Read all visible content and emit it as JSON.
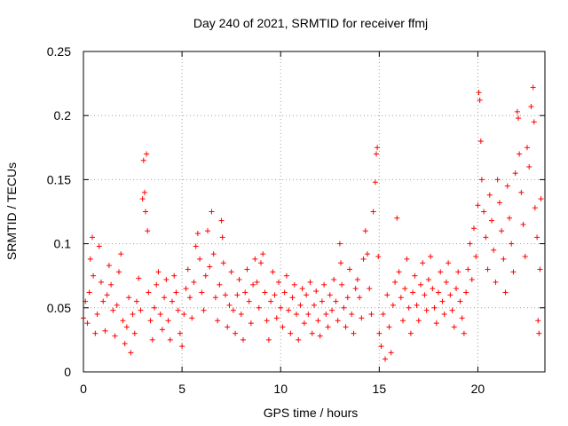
{
  "chart_data": {
    "type": "scatter",
    "title": "Day 240 of 2021, SRMTID for receiver ffmj",
    "xlabel": "GPS time / hours",
    "ylabel": "SRMTID / TECUs",
    "xlim": [
      0,
      23.4
    ],
    "ylim": [
      0,
      0.25
    ],
    "x_ticks": [
      0,
      5,
      10,
      15,
      20
    ],
    "y_ticks": [
      0,
      0.05,
      0.1,
      0.15,
      0.2,
      0.25
    ],
    "x_tick_labels": [
      "0",
      "5",
      "10",
      "15",
      "20"
    ],
    "y_tick_labels": [
      "0",
      "0.05",
      "0.1",
      "0.15",
      "0.2",
      "0.25"
    ],
    "grid": true,
    "marker": "+",
    "color": "#ff0000",
    "series": [
      {
        "name": "SRMTID",
        "points": [
          [
            0.0,
            0.042
          ],
          [
            0.1,
            0.055
          ],
          [
            0.2,
            0.038
          ],
          [
            0.3,
            0.062
          ],
          [
            0.35,
            0.088
          ],
          [
            0.45,
            0.105
          ],
          [
            0.5,
            0.075
          ],
          [
            0.6,
            0.03
          ],
          [
            0.7,
            0.045
          ],
          [
            0.8,
            0.098
          ],
          [
            0.9,
            0.07
          ],
          [
            1.0,
            0.055
          ],
          [
            1.1,
            0.032
          ],
          [
            1.2,
            0.06
          ],
          [
            1.3,
            0.083
          ],
          [
            1.4,
            0.068
          ],
          [
            1.5,
            0.048
          ],
          [
            1.6,
            0.028
          ],
          [
            1.7,
            0.052
          ],
          [
            1.8,
            0.078
          ],
          [
            1.9,
            0.092
          ],
          [
            2.0,
            0.04
          ],
          [
            2.1,
            0.022
          ],
          [
            2.2,
            0.035
          ],
          [
            2.3,
            0.058
          ],
          [
            2.4,
            0.015
          ],
          [
            2.5,
            0.045
          ],
          [
            2.6,
            0.03
          ],
          [
            2.7,
            0.055
          ],
          [
            2.8,
            0.073
          ],
          [
            2.9,
            0.048
          ],
          [
            3.0,
            0.135
          ],
          [
            3.05,
            0.165
          ],
          [
            3.1,
            0.14
          ],
          [
            3.15,
            0.125
          ],
          [
            3.2,
            0.17
          ],
          [
            3.25,
            0.11
          ],
          [
            3.3,
            0.062
          ],
          [
            3.4,
            0.04
          ],
          [
            3.5,
            0.025
          ],
          [
            3.6,
            0.05
          ],
          [
            3.7,
            0.068
          ],
          [
            3.8,
            0.078
          ],
          [
            3.9,
            0.045
          ],
          [
            4.0,
            0.033
          ],
          [
            4.1,
            0.058
          ],
          [
            4.2,
            0.072
          ],
          [
            4.3,
            0.04
          ],
          [
            4.4,
            0.025
          ],
          [
            4.5,
            0.055
          ],
          [
            4.6,
            0.075
          ],
          [
            4.7,
            0.062
          ],
          [
            4.8,
            0.048
          ],
          [
            4.9,
            0.03
          ],
          [
            5.0,
            0.02
          ],
          [
            5.1,
            0.045
          ],
          [
            5.2,
            0.065
          ],
          [
            5.3,
            0.08
          ],
          [
            5.4,
            0.058
          ],
          [
            5.5,
            0.042
          ],
          [
            5.6,
            0.07
          ],
          [
            5.7,
            0.098
          ],
          [
            5.8,
            0.108
          ],
          [
            5.9,
            0.088
          ],
          [
            6.0,
            0.062
          ],
          [
            6.1,
            0.048
          ],
          [
            6.2,
            0.075
          ],
          [
            6.3,
            0.11
          ],
          [
            6.4,
            0.082
          ],
          [
            6.5,
            0.125
          ],
          [
            6.6,
            0.092
          ],
          [
            6.7,
            0.058
          ],
          [
            6.8,
            0.04
          ],
          [
            6.9,
            0.068
          ],
          [
            7.0,
            0.118
          ],
          [
            7.05,
            0.105
          ],
          [
            7.1,
            0.085
          ],
          [
            7.2,
            0.06
          ],
          [
            7.3,
            0.035
          ],
          [
            7.4,
            0.052
          ],
          [
            7.5,
            0.078
          ],
          [
            7.6,
            0.048
          ],
          [
            7.7,
            0.03
          ],
          [
            7.8,
            0.06
          ],
          [
            7.9,
            0.072
          ],
          [
            8.0,
            0.045
          ],
          [
            8.1,
            0.025
          ],
          [
            8.2,
            0.062
          ],
          [
            8.3,
            0.08
          ],
          [
            8.4,
            0.055
          ],
          [
            8.5,
            0.038
          ],
          [
            8.6,
            0.068
          ],
          [
            8.7,
            0.088
          ],
          [
            8.8,
            0.07
          ],
          [
            8.9,
            0.05
          ],
          [
            9.0,
            0.085
          ],
          [
            9.1,
            0.092
          ],
          [
            9.2,
            0.062
          ],
          [
            9.3,
            0.04
          ],
          [
            9.4,
            0.025
          ],
          [
            9.5,
            0.055
          ],
          [
            9.6,
            0.078
          ],
          [
            9.7,
            0.06
          ],
          [
            9.8,
            0.042
          ],
          [
            9.9,
            0.07
          ],
          [
            10.0,
            0.05
          ],
          [
            10.1,
            0.035
          ],
          [
            10.2,
            0.062
          ],
          [
            10.3,
            0.075
          ],
          [
            10.4,
            0.048
          ],
          [
            10.5,
            0.03
          ],
          [
            10.6,
            0.058
          ],
          [
            10.7,
            0.068
          ],
          [
            10.8,
            0.045
          ],
          [
            10.9,
            0.025
          ],
          [
            11.0,
            0.052
          ],
          [
            11.1,
            0.065
          ],
          [
            11.2,
            0.038
          ],
          [
            11.3,
            0.06
          ],
          [
            11.4,
            0.045
          ],
          [
            11.5,
            0.07
          ],
          [
            11.6,
            0.03
          ],
          [
            11.7,
            0.052
          ],
          [
            11.8,
            0.063
          ],
          [
            11.9,
            0.04
          ],
          [
            12.0,
            0.028
          ],
          [
            12.1,
            0.055
          ],
          [
            12.2,
            0.068
          ],
          [
            12.3,
            0.045
          ],
          [
            12.4,
            0.035
          ],
          [
            12.5,
            0.06
          ],
          [
            12.6,
            0.048
          ],
          [
            12.7,
            0.072
          ],
          [
            12.8,
            0.055
          ],
          [
            12.9,
            0.04
          ],
          [
            13.0,
            0.1
          ],
          [
            13.05,
            0.085
          ],
          [
            13.1,
            0.068
          ],
          [
            13.2,
            0.05
          ],
          [
            13.3,
            0.035
          ],
          [
            13.4,
            0.058
          ],
          [
            13.5,
            0.08
          ],
          [
            13.6,
            0.045
          ],
          [
            13.7,
            0.03
          ],
          [
            13.8,
            0.065
          ],
          [
            13.9,
            0.072
          ],
          [
            14.0,
            0.058
          ],
          [
            14.1,
            0.042
          ],
          [
            14.2,
            0.088
          ],
          [
            14.3,
            0.11
          ],
          [
            14.4,
            0.092
          ],
          [
            14.5,
            0.065
          ],
          [
            14.6,
            0.045
          ],
          [
            14.7,
            0.125
          ],
          [
            14.8,
            0.148
          ],
          [
            14.85,
            0.17
          ],
          [
            14.9,
            0.175
          ],
          [
            14.95,
            0.09
          ],
          [
            15.0,
            0.03
          ],
          [
            15.1,
            0.02
          ],
          [
            15.2,
            0.045
          ],
          [
            15.3,
            0.01
          ],
          [
            15.4,
            0.06
          ],
          [
            15.5,
            0.035
          ],
          [
            15.6,
            0.015
          ],
          [
            15.7,
            0.052
          ],
          [
            15.8,
            0.07
          ],
          [
            15.9,
            0.12
          ],
          [
            16.0,
            0.078
          ],
          [
            16.1,
            0.058
          ],
          [
            16.2,
            0.04
          ],
          [
            16.3,
            0.065
          ],
          [
            16.4,
            0.088
          ],
          [
            16.5,
            0.05
          ],
          [
            16.6,
            0.03
          ],
          [
            16.7,
            0.062
          ],
          [
            16.8,
            0.075
          ],
          [
            16.9,
            0.052
          ],
          [
            17.0,
            0.04
          ],
          [
            17.1,
            0.068
          ],
          [
            17.2,
            0.085
          ],
          [
            17.3,
            0.06
          ],
          [
            17.4,
            0.048
          ],
          [
            17.5,
            0.072
          ],
          [
            17.6,
            0.09
          ],
          [
            17.7,
            0.065
          ],
          [
            17.8,
            0.05
          ],
          [
            17.9,
            0.038
          ],
          [
            18.0,
            0.062
          ],
          [
            18.1,
            0.078
          ],
          [
            18.2,
            0.055
          ],
          [
            18.3,
            0.045
          ],
          [
            18.4,
            0.07
          ],
          [
            18.5,
            0.085
          ],
          [
            18.6,
            0.06
          ],
          [
            18.7,
            0.048
          ],
          [
            18.8,
            0.035
          ],
          [
            18.9,
            0.065
          ],
          [
            19.0,
            0.078
          ],
          [
            19.1,
            0.055
          ],
          [
            19.2,
            0.042
          ],
          [
            19.3,
            0.03
          ],
          [
            19.4,
            0.062
          ],
          [
            19.5,
            0.08
          ],
          [
            19.6,
            0.1
          ],
          [
            19.7,
            0.072
          ],
          [
            19.8,
            0.112
          ],
          [
            19.9,
            0.09
          ],
          [
            20.0,
            0.13
          ],
          [
            20.05,
            0.218
          ],
          [
            20.1,
            0.212
          ],
          [
            20.15,
            0.18
          ],
          [
            20.2,
            0.15
          ],
          [
            20.3,
            0.125
          ],
          [
            20.4,
            0.105
          ],
          [
            20.5,
            0.08
          ],
          [
            20.6,
            0.138
          ],
          [
            20.7,
            0.118
          ],
          [
            20.8,
            0.095
          ],
          [
            20.9,
            0.07
          ],
          [
            21.0,
            0.15
          ],
          [
            21.1,
            0.132
          ],
          [
            21.2,
            0.11
          ],
          [
            21.3,
            0.088
          ],
          [
            21.4,
            0.062
          ],
          [
            21.5,
            0.145
          ],
          [
            21.6,
            0.12
          ],
          [
            21.7,
            0.1
          ],
          [
            21.8,
            0.078
          ],
          [
            21.9,
            0.155
          ],
          [
            22.0,
            0.203
          ],
          [
            22.05,
            0.198
          ],
          [
            22.1,
            0.17
          ],
          [
            22.2,
            0.14
          ],
          [
            22.3,
            0.115
          ],
          [
            22.4,
            0.09
          ],
          [
            22.5,
            0.175
          ],
          [
            22.6,
            0.16
          ],
          [
            22.7,
            0.207
          ],
          [
            22.8,
            0.222
          ],
          [
            22.85,
            0.195
          ],
          [
            22.9,
            0.128
          ],
          [
            23.0,
            0.105
          ],
          [
            23.05,
            0.04
          ],
          [
            23.1,
            0.03
          ],
          [
            23.15,
            0.08
          ],
          [
            23.2,
            0.135
          ]
        ]
      }
    ]
  }
}
